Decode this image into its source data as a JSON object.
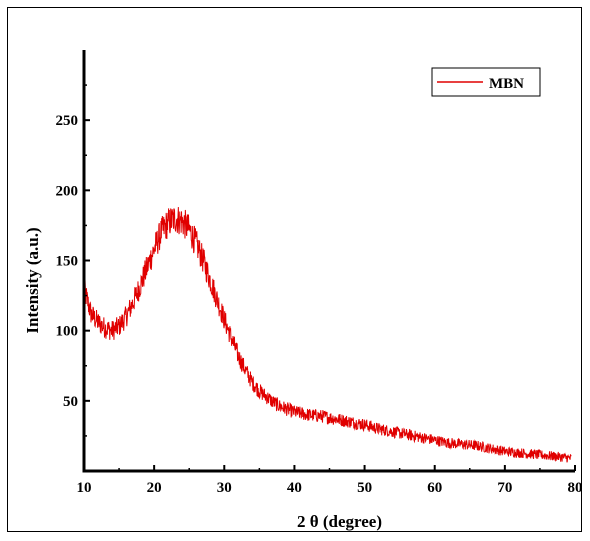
{
  "chart_data": {
    "type": "line",
    "xlabel": "2 θ (degree)",
    "ylabel": "Intensity (a.u.)",
    "xlim": [
      10,
      80
    ],
    "ylim": [
      0,
      300
    ],
    "xticks": [
      10,
      20,
      30,
      40,
      50,
      60,
      70,
      80
    ],
    "yticks": [
      50,
      100,
      150,
      200,
      250
    ],
    "grid": false,
    "legend_position": "top-right",
    "colors": {
      "series": "#e00000",
      "axis": "#000000"
    },
    "series": [
      {
        "name": "MBN",
        "x": [
          10,
          11,
          12,
          13,
          14,
          15,
          16,
          17,
          18,
          19,
          20,
          21,
          22,
          23,
          24,
          25,
          26,
          27,
          28,
          29,
          30,
          31,
          32,
          33,
          34,
          35,
          36,
          37,
          38,
          40,
          42,
          44,
          46,
          48,
          50,
          52,
          54,
          56,
          58,
          60,
          62,
          64,
          66,
          68,
          70,
          72,
          74,
          76,
          78,
          79.5
        ],
        "y": [
          130,
          112,
          106,
          102,
          100,
          103,
          110,
          120,
          132,
          145,
          158,
          170,
          177,
          180,
          178,
          172,
          162,
          150,
          136,
          122,
          108,
          95,
          82,
          72,
          63,
          57,
          53,
          49,
          46,
          42,
          40,
          39,
          37,
          35,
          33,
          30,
          28,
          26,
          24,
          22,
          20,
          19,
          18,
          16,
          14,
          13,
          12,
          11,
          10,
          9
        ]
      }
    ]
  }
}
